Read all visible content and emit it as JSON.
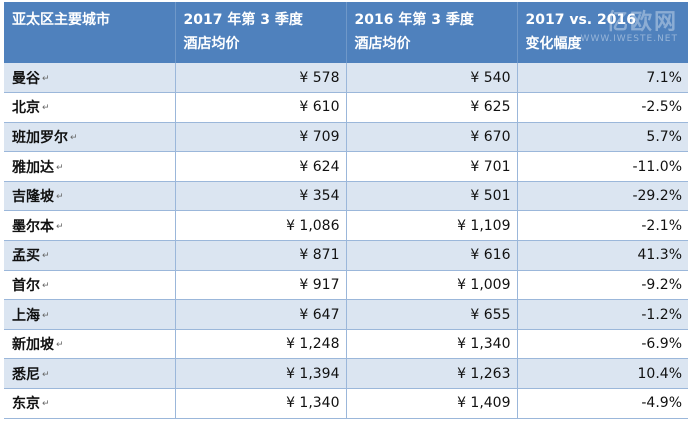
{
  "table": {
    "headers": [
      [
        "亚太区主要城市"
      ],
      [
        "2017 年第 3 季度",
        "酒店均价"
      ],
      [
        "2016 年第 3 季度",
        "酒店均价"
      ],
      [
        "2017 vs. 2016",
        "变化幅度"
      ]
    ],
    "rows": [
      {
        "city": "曼谷",
        "y2017": "¥ 578",
        "y2016": "¥ 540",
        "change": "7.1%"
      },
      {
        "city": "北京",
        "y2017": "¥ 610",
        "y2016": "¥ 625",
        "change": "-2.5%"
      },
      {
        "city": "班加罗尔",
        "y2017": "¥ 709",
        "y2016": "¥ 670",
        "change": "5.7%"
      },
      {
        "city": "雅加达",
        "y2017": "¥ 624",
        "y2016": "¥ 701",
        "change": "-11.0%"
      },
      {
        "city": "吉隆坡",
        "y2017": "¥ 354",
        "y2016": "¥ 501",
        "change": "-29.2%"
      },
      {
        "city": "墨尔本",
        "y2017": "¥ 1,086",
        "y2016": "¥ 1,109",
        "change": "-2.1%"
      },
      {
        "city": "孟买",
        "y2017": "¥ 871",
        "y2016": "¥ 616",
        "change": "41.3%"
      },
      {
        "city": "首尔",
        "y2017": "¥ 917",
        "y2016": "¥ 1,009",
        "change": "-9.2%"
      },
      {
        "city": "上海",
        "y2017": "¥ 647",
        "y2016": "¥ 655",
        "change": "-1.2%"
      },
      {
        "city": "新加坡",
        "y2017": "¥ 1,248",
        "y2016": "¥ 1,340",
        "change": "-6.9%"
      },
      {
        "city": "悉尼",
        "y2017": "¥ 1,394",
        "y2016": "¥ 1,263",
        "change": "10.4%"
      },
      {
        "city": "东京",
        "y2017": "¥ 1,340",
        "y2016": "¥ 1,409",
        "change": "-4.9%"
      }
    ],
    "paragraph_mark": "↵"
  },
  "watermark": {
    "brand": "亿欧网",
    "url": "WWW.IWESTE.NET"
  },
  "colors": {
    "header_bg": "#4f81bd",
    "band_bg": "#dbe5f1",
    "border": "#9bb7da"
  }
}
